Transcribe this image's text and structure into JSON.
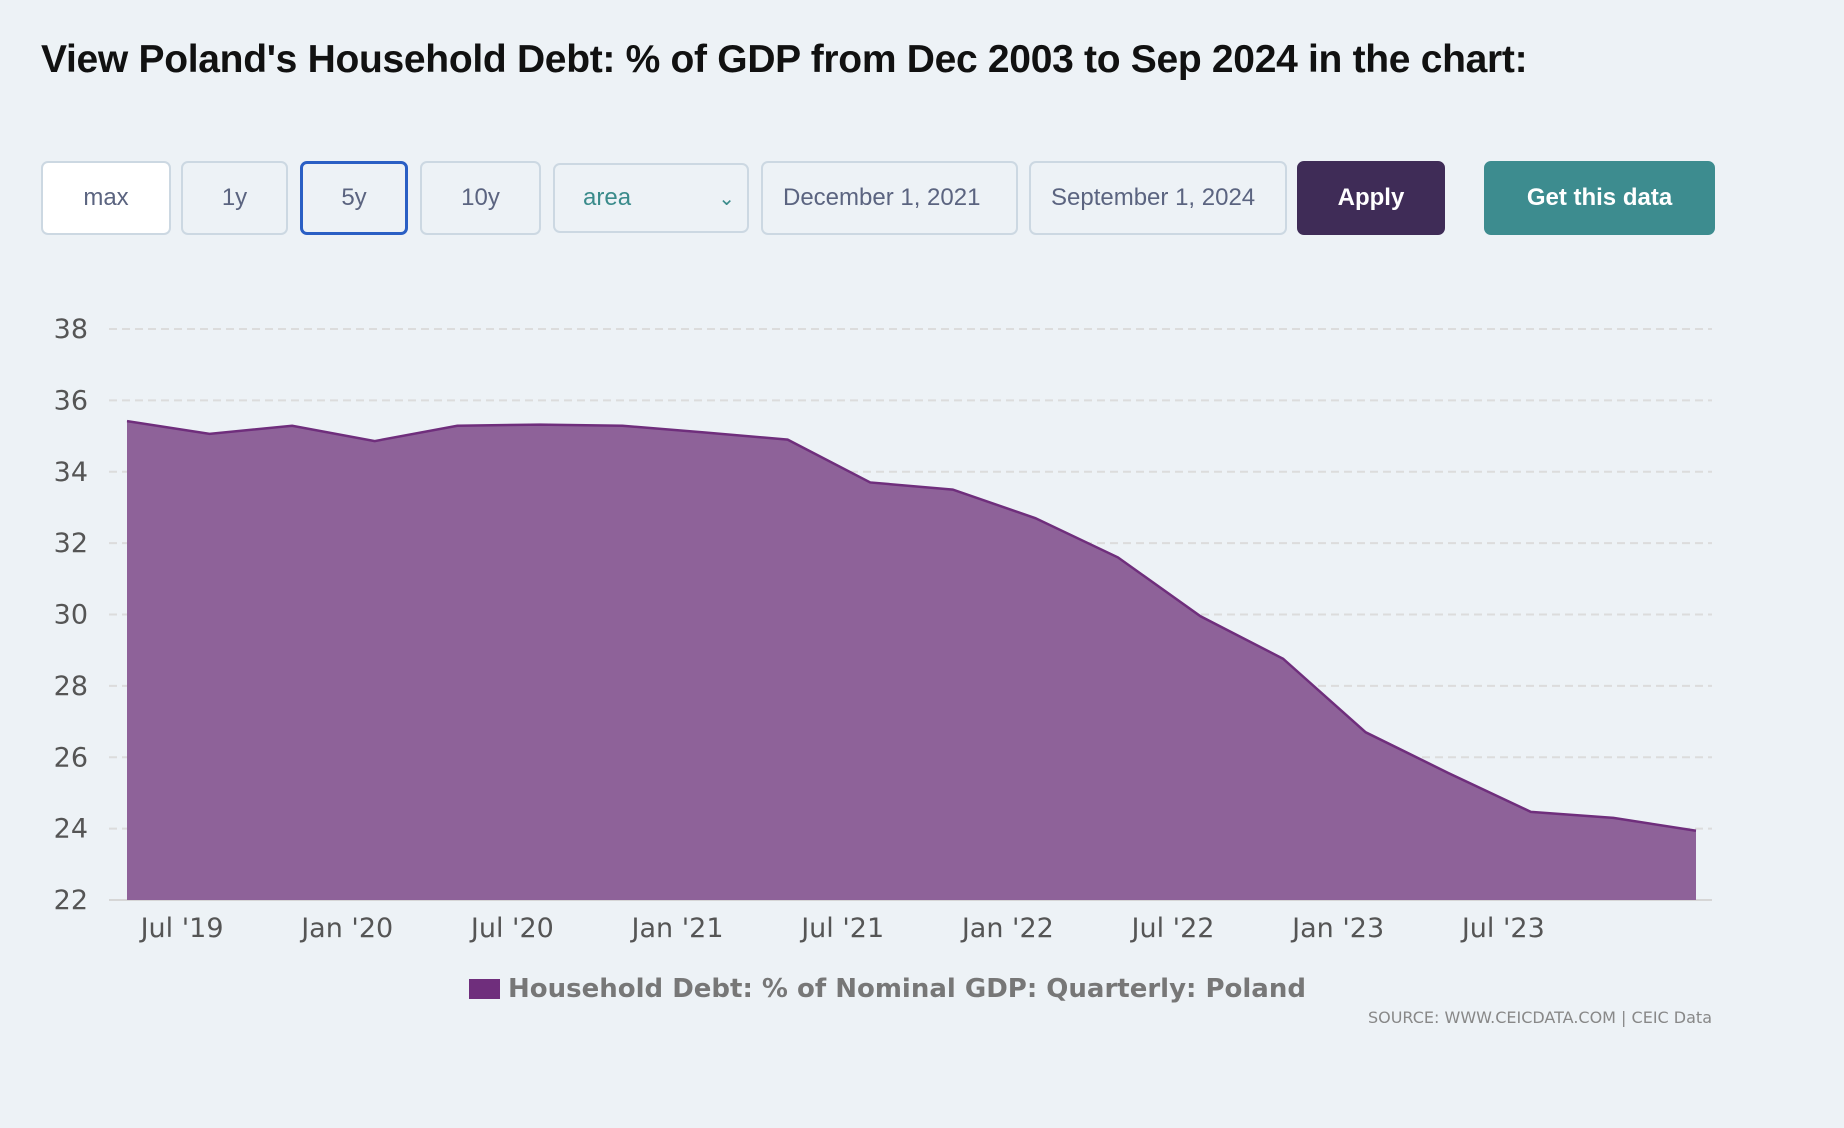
{
  "title": "View Poland's Household Debt: % of GDP from Dec 2003 to Sep 2024 in the chart:",
  "controls": {
    "ranges": [
      "max",
      "1y",
      "5y",
      "10y"
    ],
    "active_range": "5y",
    "chart_type": "area",
    "start_date": "December 1, 2021",
    "end_date": "September 1, 2024",
    "apply_label": "Apply",
    "get_data_label": "Get this data"
  },
  "colors": {
    "series": "#6f2e7c",
    "fill": "#8e6299",
    "apply": "#3f2c57",
    "get_data": "#3d8c8f",
    "active_border": "#2a5fc4"
  },
  "chart_data": {
    "type": "area",
    "title": "",
    "xlabel": "",
    "ylabel": "",
    "ylim": [
      22,
      38
    ],
    "yticks": [
      22,
      24,
      26,
      28,
      30,
      32,
      34,
      36,
      38
    ],
    "grid": true,
    "x": [
      "Mar 2019",
      "Jun 2019",
      "Sep 2019",
      "Dec 2019",
      "Mar 2020",
      "Jun 2020",
      "Sep 2020",
      "Dec 2020",
      "Mar 2021",
      "Jun 2021",
      "Sep 2021",
      "Dec 2021",
      "Mar 2022",
      "Jun 2022",
      "Sep 2022",
      "Dec 2022",
      "Mar 2023",
      "Jun 2023",
      "Sep 2023",
      "Dec 2023"
    ],
    "series": [
      {
        "name": "Household Debt: % of Nominal GDP: Quarterly: Poland",
        "values": [
          35.42,
          35.06,
          35.29,
          34.86,
          35.29,
          35.32,
          35.29,
          35.1,
          34.9,
          33.7,
          33.5,
          32.7,
          31.6,
          29.95,
          28.76,
          26.7,
          25.56,
          24.47,
          24.3,
          23.94
        ]
      }
    ],
    "xticks": [
      {
        "label": "Jul '19",
        "month": 4
      },
      {
        "label": "Jan '20",
        "month": 10
      },
      {
        "label": "Jul '20",
        "month": 16
      },
      {
        "label": "Jan '21",
        "month": 22
      },
      {
        "label": "Jul '21",
        "month": 28
      },
      {
        "label": "Jan '22",
        "month": 34
      },
      {
        "label": "Jul '22",
        "month": 40
      },
      {
        "label": "Jan '23",
        "month": 46
      },
      {
        "label": "Jul '23",
        "month": 52
      }
    ],
    "legend": "Household Debt: % of Nominal GDP: Quarterly: Poland",
    "legend_position": "bottom-center",
    "source": "SOURCE: WWW.CEICDATA.COM | CEIC Data"
  }
}
